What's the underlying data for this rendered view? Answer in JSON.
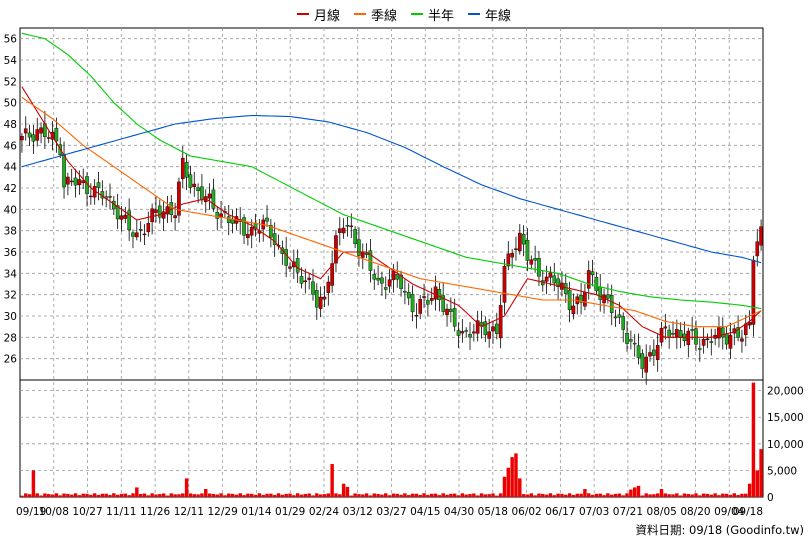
{
  "chart_data": {
    "type": "candlestick",
    "legend": [
      {
        "name": "月線",
        "color": "#cc0000"
      },
      {
        "name": "季線",
        "color": "#ff6600"
      },
      {
        "name": "半年",
        "color": "#00cc00"
      },
      {
        "name": "年線",
        "color": "#0055cc"
      }
    ],
    "price_axis": {
      "min": 24,
      "max": 57,
      "ticks": [
        26,
        28,
        30,
        32,
        34,
        36,
        38,
        40,
        42,
        44,
        46,
        48,
        50,
        52,
        54,
        56
      ]
    },
    "volume_axis": {
      "min": 0,
      "max": 22000,
      "ticks": [
        "0",
        "5,000",
        "10,000",
        "15,000",
        "20,000"
      ]
    },
    "x_labels": [
      "09/19",
      "10/08",
      "10/27",
      "11/11",
      "11/26",
      "12/11",
      "12/29",
      "01/14",
      "01/29",
      "02/24",
      "03/12",
      "03/27",
      "04/15",
      "04/30",
      "05/18",
      "06/02",
      "06/17",
      "07/03",
      "07/21",
      "08/05",
      "08/20",
      "09/04",
      "09/18"
    ],
    "close_keypoints": [
      [
        0,
        46.5
      ],
      [
        4,
        47.5
      ],
      [
        8,
        46.5
      ],
      [
        10,
        46
      ],
      [
        11,
        42.5
      ],
      [
        14,
        42.5
      ],
      [
        18,
        42
      ],
      [
        22,
        41
      ],
      [
        25,
        40
      ],
      [
        28,
        38
      ],
      [
        30,
        37.5
      ],
      [
        33,
        39
      ],
      [
        35,
        39.5
      ],
      [
        38,
        40
      ],
      [
        40,
        40
      ],
      [
        42,
        44
      ],
      [
        44,
        42.5
      ],
      [
        47,
        41.5
      ],
      [
        50,
        40
      ],
      [
        53,
        39.5
      ],
      [
        56,
        38.5
      ],
      [
        60,
        38
      ],
      [
        63,
        38.5
      ],
      [
        66,
        37.5
      ],
      [
        68,
        35.5
      ],
      [
        70,
        34.5
      ],
      [
        73,
        34
      ],
      [
        75,
        33
      ],
      [
        77,
        31
      ],
      [
        79,
        31.5
      ],
      [
        80,
        34
      ],
      [
        82,
        37
      ],
      [
        84,
        38.5
      ],
      [
        86,
        38
      ],
      [
        88,
        36.5
      ],
      [
        90,
        35
      ],
      [
        93,
        33
      ],
      [
        96,
        33.5
      ],
      [
        99,
        33
      ],
      [
        101,
        31.5
      ],
      [
        103,
        30.5
      ],
      [
        106,
        31.5
      ],
      [
        108,
        32.5
      ],
      [
        110,
        31
      ],
      [
        112,
        29.5
      ],
      [
        115,
        28.5
      ],
      [
        118,
        28.5
      ],
      [
        121,
        29
      ],
      [
        124,
        28.5
      ],
      [
        126,
        34
      ],
      [
        128,
        36.5
      ],
      [
        130,
        37.5
      ],
      [
        132,
        35.5
      ],
      [
        135,
        34
      ],
      [
        138,
        33.5
      ],
      [
        141,
        32.5
      ],
      [
        143,
        31.5
      ],
      [
        146,
        31
      ],
      [
        148,
        34
      ],
      [
        150,
        33
      ],
      [
        152,
        31.5
      ],
      [
        155,
        30
      ],
      [
        157,
        29
      ],
      [
        159,
        27.5
      ],
      [
        160,
        26.5
      ],
      [
        162,
        25.5
      ],
      [
        165,
        27
      ],
      [
        168,
        28.5
      ],
      [
        171,
        28.5
      ],
      [
        174,
        28
      ],
      [
        177,
        27.5
      ],
      [
        180,
        28
      ],
      [
        183,
        28
      ],
      [
        186,
        28.5
      ],
      [
        188,
        28
      ],
      [
        190,
        29
      ],
      [
        191,
        36
      ],
      [
        192,
        37.5
      ],
      [
        193,
        38
      ]
    ],
    "ma_month": [
      [
        0,
        51.5
      ],
      [
        6,
        48
      ],
      [
        12,
        44.5
      ],
      [
        18,
        42
      ],
      [
        24,
        40.5
      ],
      [
        30,
        39
      ],
      [
        36,
        39.5
      ],
      [
        42,
        40.5
      ],
      [
        48,
        41
      ],
      [
        54,
        39.5
      ],
      [
        60,
        38.5
      ],
      [
        66,
        37
      ],
      [
        72,
        34.5
      ],
      [
        78,
        33.5
      ],
      [
        84,
        36
      ],
      [
        90,
        36
      ],
      [
        96,
        34.5
      ],
      [
        102,
        33
      ],
      [
        108,
        32
      ],
      [
        114,
        31
      ],
      [
        120,
        29
      ],
      [
        126,
        30
      ],
      [
        132,
        33.5
      ],
      [
        138,
        33
      ],
      [
        144,
        32.5
      ],
      [
        150,
        32
      ],
      [
        156,
        31
      ],
      [
        162,
        29
      ],
      [
        168,
        28
      ],
      [
        174,
        28
      ],
      [
        180,
        28
      ],
      [
        186,
        28.5
      ],
      [
        190,
        29.5
      ],
      [
        193,
        30.5
      ]
    ],
    "ma_quarter": [
      [
        0,
        50.5
      ],
      [
        8,
        48.5
      ],
      [
        16,
        46
      ],
      [
        24,
        44
      ],
      [
        32,
        42
      ],
      [
        40,
        40
      ],
      [
        48,
        39.5
      ],
      [
        56,
        39
      ],
      [
        64,
        38.5
      ],
      [
        72,
        37.5
      ],
      [
        80,
        36.5
      ],
      [
        88,
        35.5
      ],
      [
        96,
        34.5
      ],
      [
        104,
        33.5
      ],
      [
        112,
        33
      ],
      [
        120,
        32.5
      ],
      [
        128,
        32
      ],
      [
        136,
        31.5
      ],
      [
        144,
        31.5
      ],
      [
        152,
        31
      ],
      [
        160,
        30.5
      ],
      [
        168,
        29.5
      ],
      [
        176,
        29
      ],
      [
        184,
        29
      ],
      [
        193,
        30.5
      ]
    ],
    "ma_half": [
      [
        0,
        56.5
      ],
      [
        6,
        56
      ],
      [
        12,
        54.5
      ],
      [
        18,
        52.5
      ],
      [
        24,
        50
      ],
      [
        30,
        48
      ],
      [
        36,
        46.5
      ],
      [
        44,
        45
      ],
      [
        52,
        44.5
      ],
      [
        60,
        44
      ],
      [
        68,
        42.5
      ],
      [
        76,
        41
      ],
      [
        84,
        39.5
      ],
      [
        92,
        38.5
      ],
      [
        100,
        37.5
      ],
      [
        108,
        36.5
      ],
      [
        116,
        35.5
      ],
      [
        124,
        35
      ],
      [
        132,
        34.5
      ],
      [
        140,
        34
      ],
      [
        148,
        33
      ],
      [
        156,
        32.3
      ],
      [
        164,
        31.8
      ],
      [
        172,
        31.5
      ],
      [
        180,
        31.3
      ],
      [
        188,
        31
      ],
      [
        193,
        30.7
      ]
    ],
    "ma_year": [
      [
        0,
        44
      ],
      [
        10,
        45
      ],
      [
        20,
        46
      ],
      [
        30,
        47
      ],
      [
        40,
        48
      ],
      [
        50,
        48.5
      ],
      [
        60,
        48.8
      ],
      [
        70,
        48.7
      ],
      [
        80,
        48.2
      ],
      [
        90,
        47.2
      ],
      [
        100,
        45.8
      ],
      [
        110,
        44
      ],
      [
        120,
        42.3
      ],
      [
        130,
        41
      ],
      [
        140,
        40
      ],
      [
        150,
        39
      ],
      [
        160,
        38
      ],
      [
        170,
        37
      ],
      [
        180,
        36
      ],
      [
        188,
        35.5
      ],
      [
        193,
        35
      ]
    ],
    "volume_spikes": [
      [
        3,
        5000
      ],
      [
        30,
        1800
      ],
      [
        43,
        3500
      ],
      [
        48,
        1500
      ],
      [
        81,
        6200
      ],
      [
        84,
        2500
      ],
      [
        85,
        1900
      ],
      [
        126,
        3800
      ],
      [
        127,
        5500
      ],
      [
        128,
        7500
      ],
      [
        129,
        8200
      ],
      [
        130,
        3500
      ],
      [
        147,
        1500
      ],
      [
        159,
        1400
      ],
      [
        160,
        1800
      ],
      [
        161,
        2100
      ],
      [
        167,
        1500
      ],
      [
        190,
        2500
      ],
      [
        191,
        21500
      ],
      [
        192,
        5000
      ],
      [
        193,
        9000
      ]
    ]
  },
  "footer_text": "資料日期: 09/18  (Goodinfo.tw)"
}
